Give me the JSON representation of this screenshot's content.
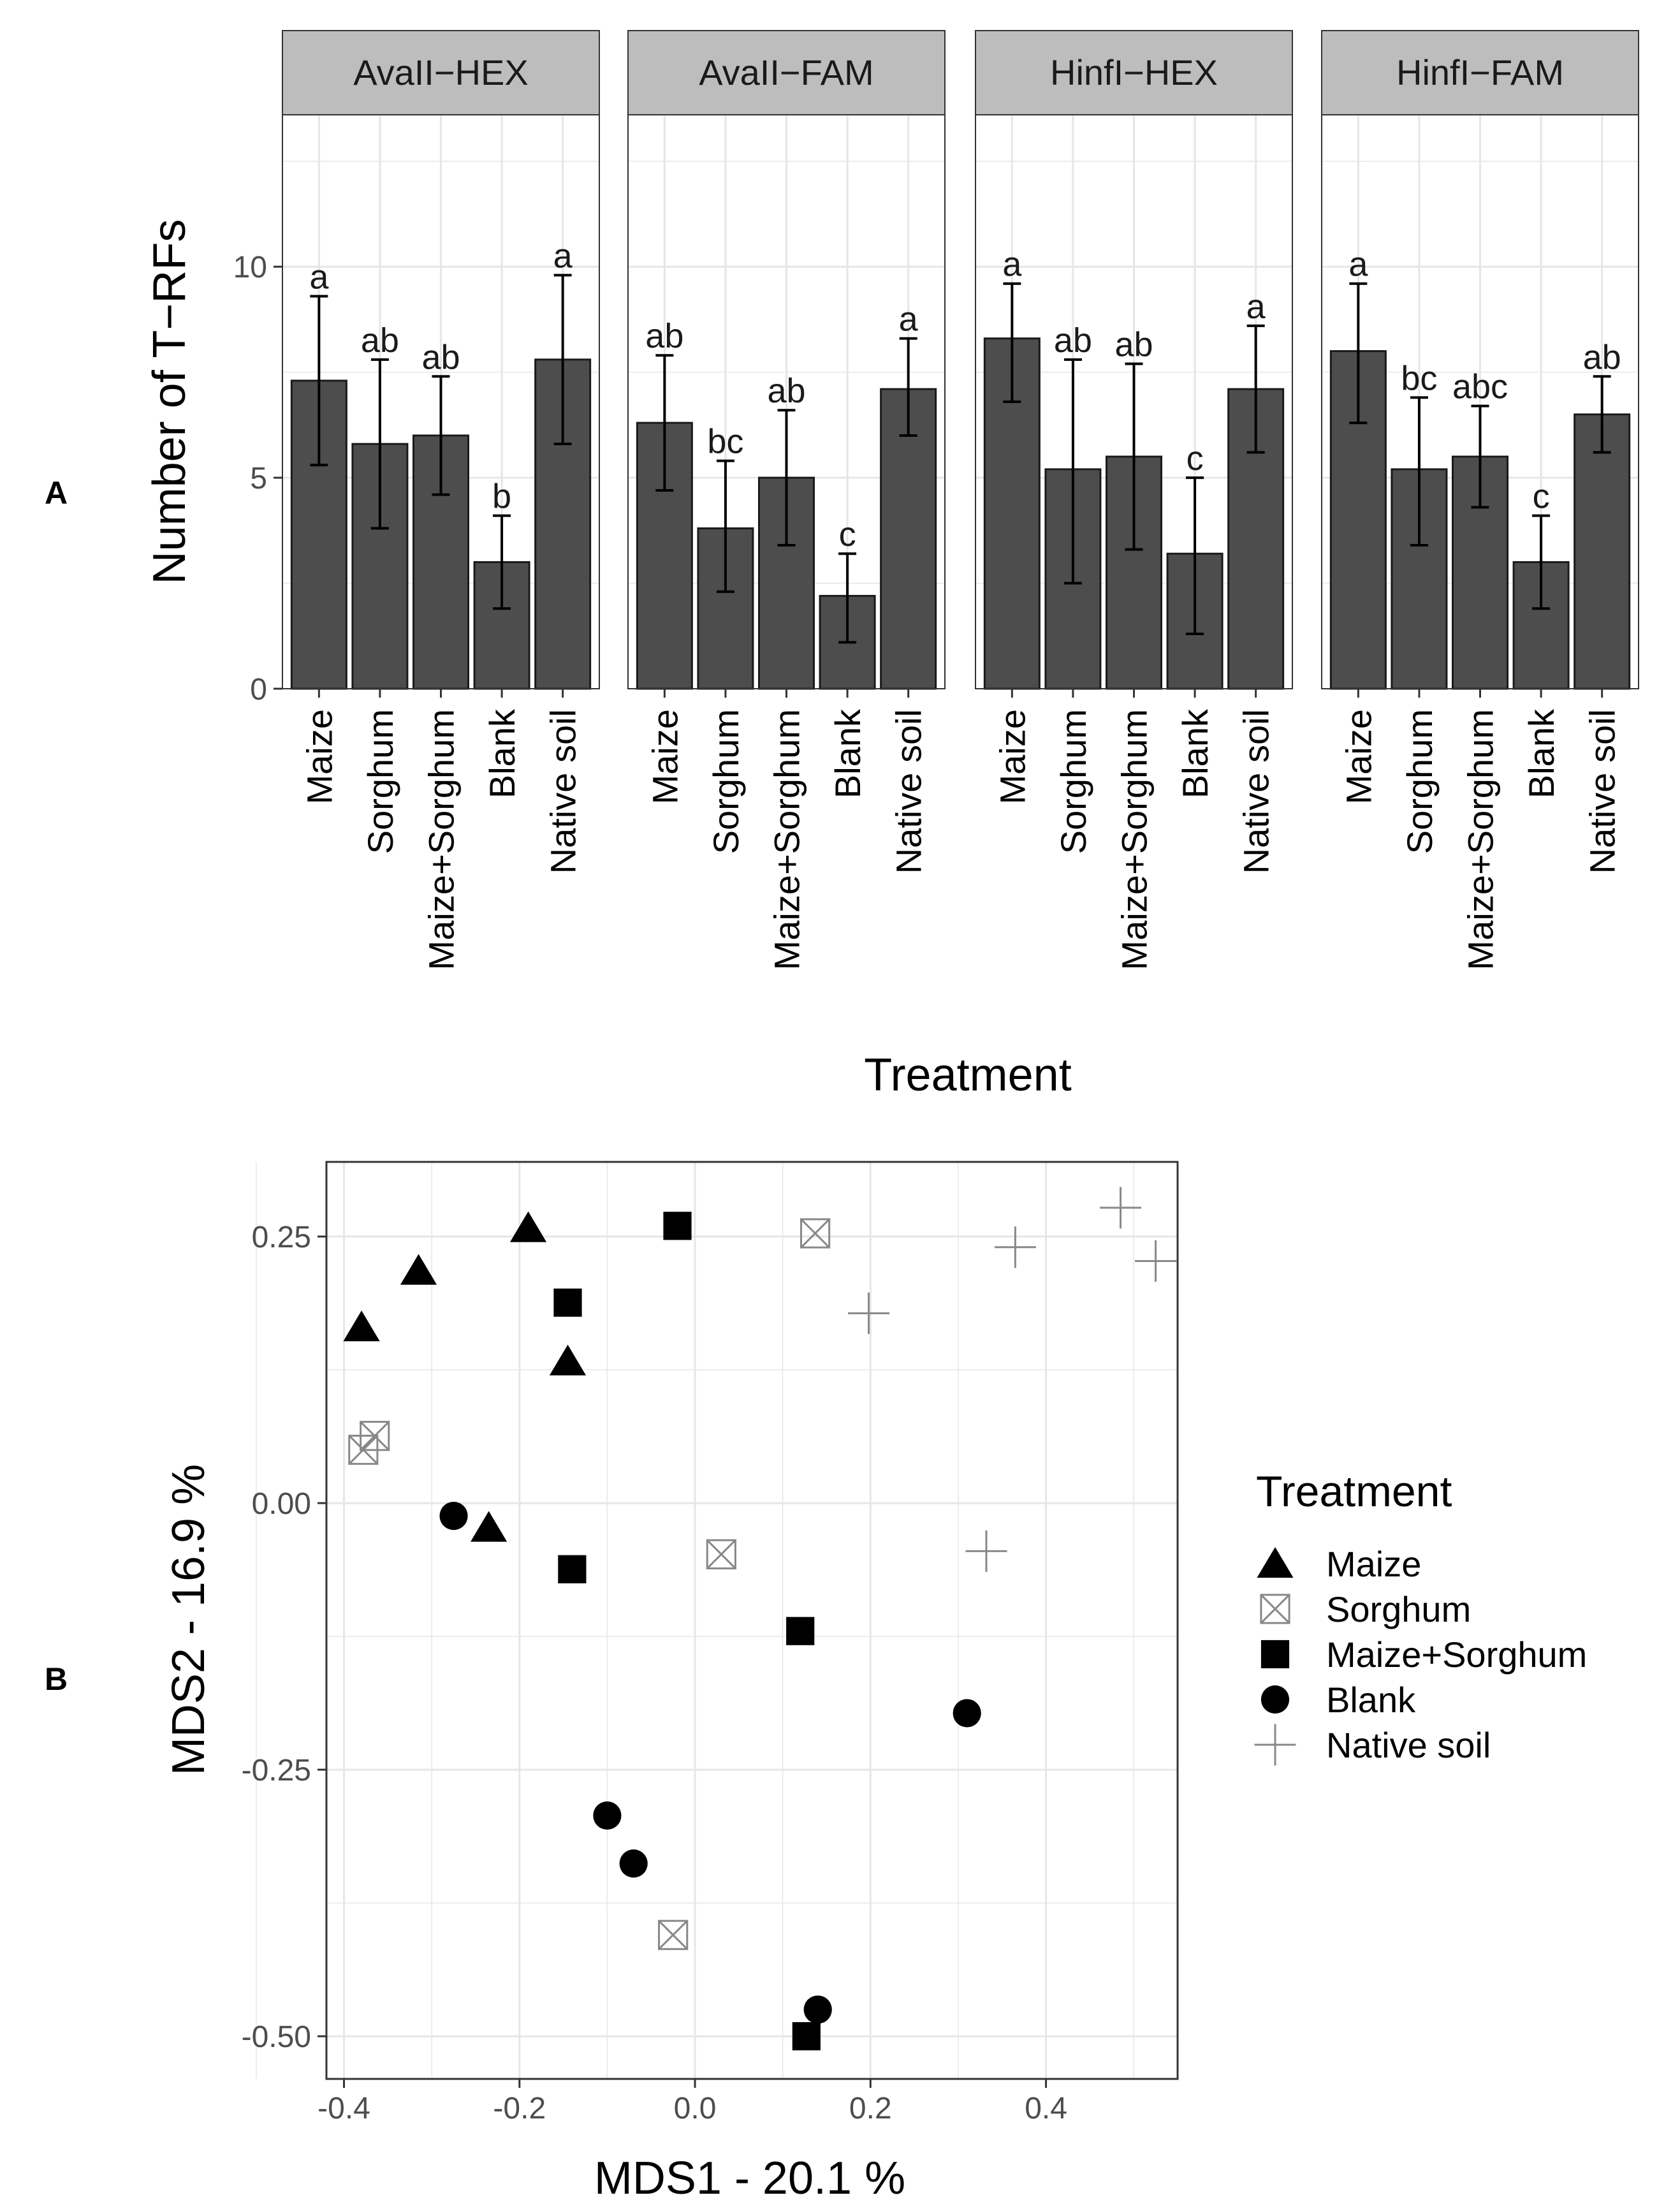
{
  "colors": {
    "bar_fill": "#4d4d4d",
    "bar_stroke": "#1a1a1a",
    "strip_fill": "#bdbdbd",
    "grid": "#e6e6e6",
    "panel_border": "#333333",
    "open_marker": "#888888"
  },
  "panel_labels": {
    "a": "A",
    "b": "B"
  },
  "chart_data": [
    {
      "type": "bar",
      "title": "",
      "xlabel": "Treatment",
      "ylabel": "Number of T−RFs",
      "ylim": [
        0,
        13.6
      ],
      "yticks": [
        0,
        5,
        10
      ],
      "categories": [
        "Maize",
        "Sorghum",
        "Maize+Sorghum",
        "Blank",
        "Native soil"
      ],
      "facets": [
        {
          "name": "AvaII−HEX",
          "values": [
            7.3,
            5.8,
            6.0,
            3.0,
            7.8
          ],
          "error": [
            [
              5.3,
              9.3
            ],
            [
              3.8,
              7.8
            ],
            [
              4.6,
              7.4
            ],
            [
              1.9,
              4.1
            ],
            [
              5.8,
              9.8
            ]
          ],
          "letters": [
            "a",
            "ab",
            "ab",
            "b",
            "a"
          ]
        },
        {
          "name": "AvaII−FAM",
          "values": [
            6.3,
            3.8,
            5.0,
            2.2,
            7.1
          ],
          "error": [
            [
              4.7,
              7.9
            ],
            [
              2.3,
              5.4
            ],
            [
              3.4,
              6.6
            ],
            [
              1.1,
              3.2
            ],
            [
              6.0,
              8.3
            ]
          ],
          "letters": [
            "ab",
            "bc",
            "ab",
            "c",
            "a"
          ]
        },
        {
          "name": "HinfI−HEX",
          "values": [
            8.3,
            5.2,
            5.5,
            3.2,
            7.1
          ],
          "error": [
            [
              6.8,
              9.6
            ],
            [
              2.5,
              7.8
            ],
            [
              3.3,
              7.7
            ],
            [
              1.3,
              5.0
            ],
            [
              5.6,
              8.6
            ]
          ],
          "letters": [
            "a",
            "ab",
            "ab",
            "c",
            "a"
          ]
        },
        {
          "name": "HinfI−FAM",
          "values": [
            8.0,
            5.2,
            5.5,
            3.0,
            6.5
          ],
          "error": [
            [
              6.3,
              9.6
            ],
            [
              3.4,
              6.9
            ],
            [
              4.3,
              6.7
            ],
            [
              1.9,
              4.1
            ],
            [
              5.6,
              7.4
            ]
          ],
          "letters": [
            "a",
            "bc",
            "abc",
            "c",
            "ab"
          ]
        }
      ]
    },
    {
      "type": "scatter",
      "title": "",
      "xlabel": "MDS1 - 20.1 %",
      "ylabel": "MDS2 - 16.9 %",
      "xlim": [
        -0.42,
        0.55
      ],
      "ylim": [
        -0.54,
        0.32
      ],
      "xticks": [
        -0.4,
        -0.2,
        0.0,
        0.2,
        0.4
      ],
      "xtick_labels": [
        "-0.4",
        "-0.2",
        "0.0",
        "0.2",
        "0.4"
      ],
      "yticks": [
        0.25,
        0.0,
        -0.25,
        -0.5
      ],
      "ytick_labels": [
        "0.25",
        "0.00",
        "-0.25",
        "-0.50"
      ],
      "legend_title": "Treatment",
      "legend_position": "right",
      "series": [
        {
          "name": "Maize",
          "marker": "triangle",
          "points": [
            [
              -0.38,
              0.165
            ],
            [
              -0.315,
              0.218
            ],
            [
              -0.19,
              0.258
            ],
            [
              -0.145,
              0.133
            ],
            [
              -0.235,
              -0.023
            ]
          ]
        },
        {
          "name": "Sorghum",
          "marker": "boxed-x",
          "points": [
            [
              -0.365,
              0.063
            ],
            [
              -0.378,
              0.05
            ],
            [
              0.137,
              0.253
            ],
            [
              0.03,
              -0.048
            ],
            [
              -0.025,
              -0.405
            ]
          ]
        },
        {
          "name": "Maize+Sorghum",
          "marker": "square",
          "points": [
            [
              -0.02,
              0.26
            ],
            [
              -0.145,
              0.188
            ],
            [
              -0.14,
              -0.062
            ],
            [
              0.12,
              -0.12
            ],
            [
              0.127,
              -0.5
            ]
          ]
        },
        {
          "name": "Blank",
          "marker": "circle",
          "points": [
            [
              -0.275,
              -0.012
            ],
            [
              -0.1,
              -0.293
            ],
            [
              -0.07,
              -0.338
            ],
            [
              0.31,
              -0.197
            ],
            [
              0.14,
              -0.475
            ]
          ]
        },
        {
          "name": "Native soil",
          "marker": "plus",
          "points": [
            [
              0.485,
              0.277
            ],
            [
              0.365,
              0.24
            ],
            [
              0.525,
              0.227
            ],
            [
              0.198,
              0.178
            ],
            [
              0.332,
              -0.045
            ]
          ]
        }
      ]
    }
  ]
}
